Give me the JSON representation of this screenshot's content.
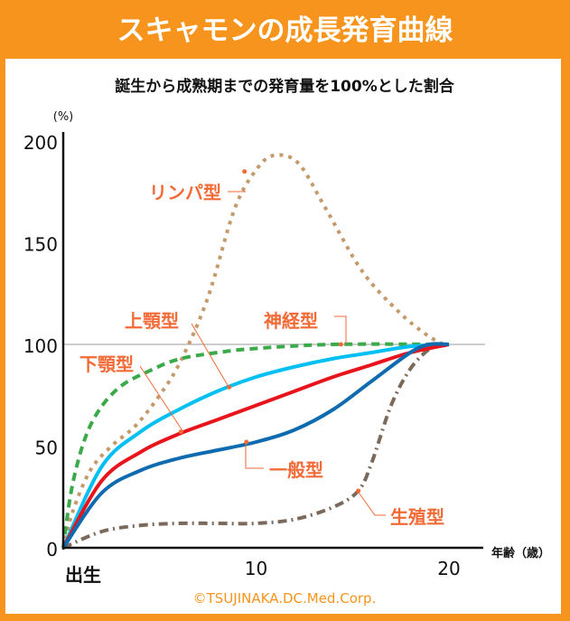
{
  "header": {
    "title": "スキャモンの成長発育曲線"
  },
  "colors": {
    "orange": "#F7941D",
    "label": "#F26A36"
  },
  "chart_data": {
    "type": "line",
    "title": "誕生から成熟期までの発育量を100%とした割合",
    "ylabel": "(%)",
    "xlabel": "年齢（歳）",
    "x_origin_label": "出生",
    "xlim": [
      0,
      22
    ],
    "ylim": [
      0,
      200
    ],
    "xticks": [
      {
        "v": 10,
        "label": "10"
      },
      {
        "v": 20,
        "label": "20"
      }
    ],
    "yticks": [
      {
        "v": 0,
        "label": "0"
      },
      {
        "v": 50,
        "label": "50"
      },
      {
        "v": 100,
        "label": "100"
      },
      {
        "v": 150,
        "label": "150"
      },
      {
        "v": 200,
        "label": "200"
      }
    ],
    "reference_line": 100,
    "series": [
      {
        "name": "リンパ型",
        "color": "#C49A6C",
        "dash": "4 6",
        "marker": [
          9.4,
          185
        ],
        "points": [
          [
            0,
            0
          ],
          [
            0.5,
            18
          ],
          [
            1.4,
            38
          ],
          [
            2.5,
            50
          ],
          [
            3.75,
            60
          ],
          [
            5,
            75
          ],
          [
            6.1,
            92
          ],
          [
            7.5,
            123
          ],
          [
            8.9,
            167
          ],
          [
            10.1,
            187
          ],
          [
            11,
            193
          ],
          [
            12.2,
            189
          ],
          [
            13.6,
            167
          ],
          [
            15.5,
            136
          ],
          [
            17.4,
            116
          ],
          [
            18.8,
            105
          ],
          [
            19.7,
            100
          ]
        ]
      },
      {
        "name": "神経型",
        "color": "#3BAA4A",
        "dash": "9 6",
        "marker": [
          14.4,
          100
        ],
        "points": [
          [
            0,
            0
          ],
          [
            0.5,
            32
          ],
          [
            1.4,
            60
          ],
          [
            2.8,
            78
          ],
          [
            4.7,
            88
          ],
          [
            6.1,
            93
          ],
          [
            8,
            96
          ],
          [
            10,
            98
          ],
          [
            14,
            100
          ],
          [
            20,
            100
          ]
        ]
      },
      {
        "name": "上顎型",
        "color": "#00BFF3",
        "dash": "",
        "marker": [
          8.6,
          79
        ],
        "points": [
          [
            0,
            0
          ],
          [
            2,
            40
          ],
          [
            4,
            57
          ],
          [
            6,
            68
          ],
          [
            8,
            77
          ],
          [
            10,
            84
          ],
          [
            12,
            89
          ],
          [
            14,
            93
          ],
          [
            16,
            96
          ],
          [
            18,
            99
          ],
          [
            20,
            100
          ]
        ]
      },
      {
        "name": "下顎型",
        "color": "#E8141C",
        "dash": "",
        "marker": [
          6.1,
          57
        ],
        "points": [
          [
            0,
            0
          ],
          [
            2,
            33
          ],
          [
            4,
            47
          ],
          [
            6,
            56
          ],
          [
            8,
            63
          ],
          [
            10,
            70
          ],
          [
            12,
            77
          ],
          [
            14,
            84
          ],
          [
            16,
            90
          ],
          [
            18,
            96
          ],
          [
            20,
            100
          ]
        ]
      },
      {
        "name": "一般型",
        "color": "#0E6BB0",
        "dash": "",
        "marker": [
          9.5,
          52
        ],
        "points": [
          [
            0,
            0
          ],
          [
            2,
            27
          ],
          [
            4,
            38
          ],
          [
            6,
            44
          ],
          [
            8,
            48
          ],
          [
            10,
            52
          ],
          [
            12,
            58
          ],
          [
            14,
            68
          ],
          [
            16,
            82
          ],
          [
            18,
            96
          ],
          [
            19,
            100
          ],
          [
            20,
            100
          ]
        ]
      },
      {
        "name": "生殖型",
        "color": "#7B6A5C",
        "dash": "10 5 2 5",
        "marker": [
          15.3,
          28
        ],
        "points": [
          [
            0,
            0
          ],
          [
            2,
            8
          ],
          [
            4,
            11
          ],
          [
            6,
            12
          ],
          [
            8,
            12
          ],
          [
            10,
            12
          ],
          [
            12,
            14
          ],
          [
            14,
            20
          ],
          [
            15.3,
            28
          ],
          [
            16,
            42
          ],
          [
            17,
            70
          ],
          [
            18,
            88
          ],
          [
            19,
            98
          ],
          [
            19.5,
            100
          ]
        ]
      }
    ],
    "copyright": "©TSUJINAKA.DC.Med.Corp."
  }
}
